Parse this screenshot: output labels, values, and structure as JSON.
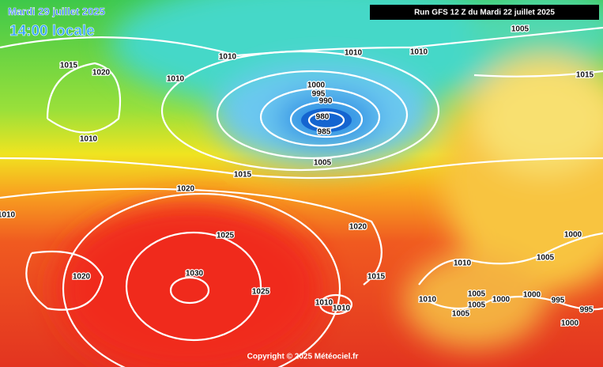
{
  "header": {
    "date": "Mardi 29 juillet 2025",
    "time": "14:00 locale",
    "run": "Run GFS 12 Z du Mardi 22 juillet 2025",
    "copyright": "Copyright © 2025 Météociel.fr"
  },
  "isobar_labels": [
    "1005",
    "1010",
    "1010",
    "1010",
    "1015",
    "1020",
    "1010",
    "1015",
    "1000",
    "995",
    "990",
    "980",
    "985",
    "1010",
    "1005",
    "1015",
    "1020",
    "1020",
    "1025",
    "1000",
    "1030",
    "1020",
    "1025",
    "1015",
    "1010",
    "1005",
    "1010",
    "1010",
    "1010",
    "1005",
    "1005",
    "1000",
    "1005",
    "1000",
    "995",
    "995",
    "1000",
    "1010"
  ]
}
